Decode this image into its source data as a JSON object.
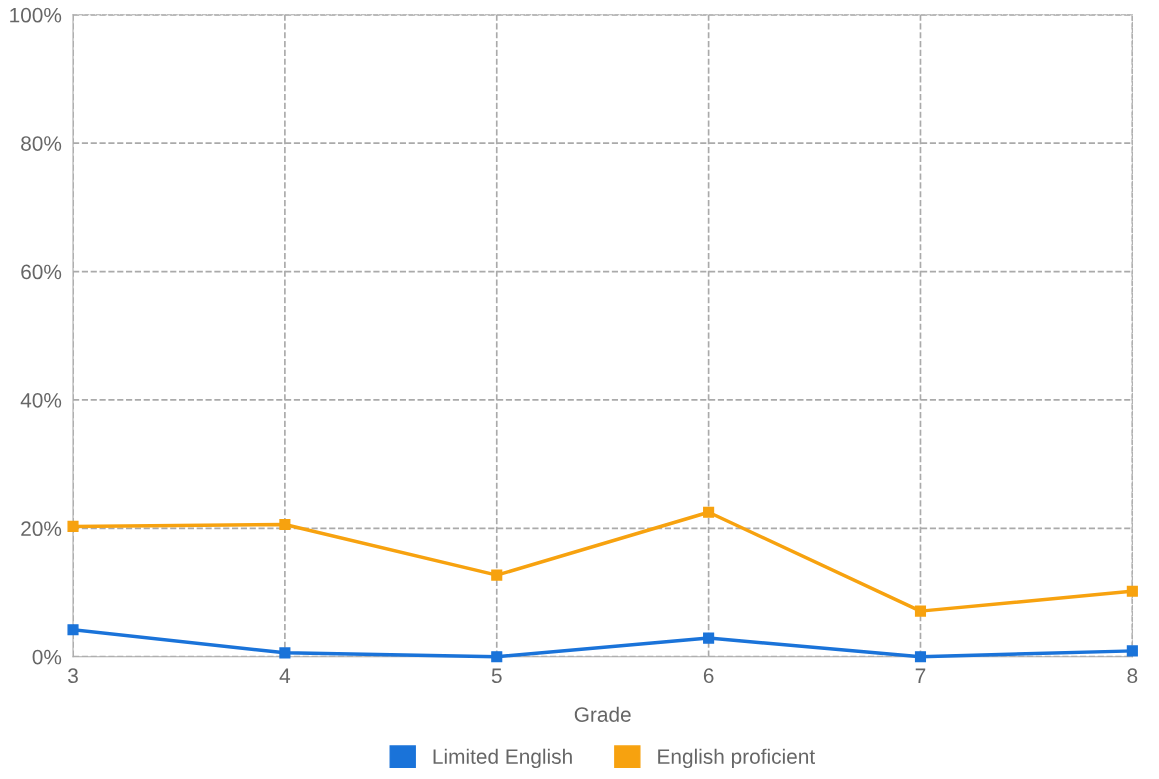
{
  "chart_data": {
    "type": "line",
    "xlabel": "Grade",
    "x": [
      3,
      4,
      5,
      6,
      7,
      8
    ],
    "xlim": [
      3,
      8
    ],
    "xticks": [
      3,
      4,
      5,
      6,
      7,
      8
    ],
    "ylim": [
      0,
      100
    ],
    "yticks": [
      {
        "value": 0,
        "label": "0%"
      },
      {
        "value": 20,
        "label": "20%"
      },
      {
        "value": 40,
        "label": "40%"
      },
      {
        "value": 60,
        "label": "60%"
      },
      {
        "value": 80,
        "label": "80%"
      },
      {
        "value": 100,
        "label": "100%"
      }
    ],
    "series": [
      {
        "name": "Limited English",
        "color": "#1a73d9",
        "values": [
          4.2,
          0.6,
          0,
          2.9,
          0,
          0.9
        ]
      },
      {
        "name": "English proficient",
        "color": "#f7a20f",
        "values": [
          20.3,
          20.6,
          12.7,
          22.5,
          7.1,
          10.2
        ]
      }
    ],
    "grid": true,
    "legend": "bottom",
    "marker": "square",
    "line_style": "solid"
  }
}
